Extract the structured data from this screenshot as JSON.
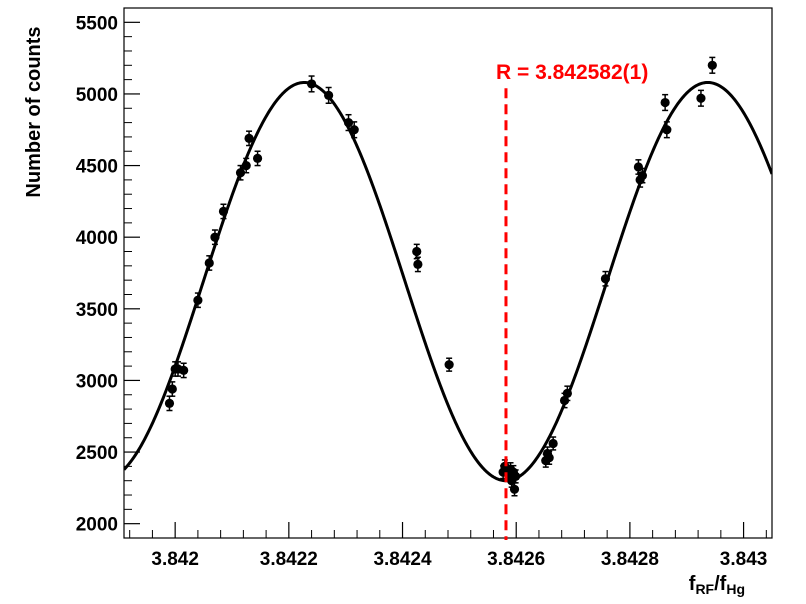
{
  "chart_data": {
    "type": "scatter",
    "title": "",
    "xlabel": {
      "main": "f",
      "sub1": "RF",
      "sep": "/f",
      "sub2": "Hg"
    },
    "ylabel": "Number of counts",
    "xlim": [
      3.84191,
      3.84305
    ],
    "ylim": [
      1900,
      5600
    ],
    "x_ticks": [
      {
        "value": 3.842,
        "label": "3.842"
      },
      {
        "value": 3.8422,
        "label": "3.8422"
      },
      {
        "value": 3.8424,
        "label": "3.8424"
      },
      {
        "value": 3.8426,
        "label": "3.8426"
      },
      {
        "value": 3.8428,
        "label": "3.8428"
      },
      {
        "value": 3.843,
        "label": "3.843"
      }
    ],
    "y_ticks": [
      {
        "value": 2000,
        "label": "2000"
      },
      {
        "value": 2500,
        "label": "2500"
      },
      {
        "value": 3000,
        "label": "3000"
      },
      {
        "value": 3500,
        "label": "3500"
      },
      {
        "value": 4000,
        "label": "4000"
      },
      {
        "value": 4500,
        "label": "4500"
      },
      {
        "value": 5000,
        "label": "5000"
      },
      {
        "value": 5500,
        "label": "5500"
      }
    ],
    "series": [
      {
        "kind": "points_with_errors",
        "color": "#000000",
        "x": [
          3.84199,
          3.841995,
          3.842,
          3.842005,
          3.842015,
          3.84204,
          3.84206,
          3.84207,
          3.842085,
          3.842115,
          3.842125,
          3.84213,
          3.842145,
          3.84224,
          3.84227,
          3.842305,
          3.842315,
          3.842425,
          3.842427,
          3.842482,
          3.842577,
          3.84258,
          3.842585,
          3.84259,
          3.842592,
          3.842595,
          3.842597,
          3.842599,
          3.842652,
          3.842655,
          3.842658,
          3.842665,
          3.842685,
          3.84269,
          3.842757,
          3.842815,
          3.842818,
          3.842822,
          3.842862,
          3.842865,
          3.842925,
          3.842945
        ],
        "y": [
          2840,
          2940,
          3080,
          3080,
          3070,
          3560,
          3820,
          4000,
          4180,
          4450,
          4500,
          4690,
          4550,
          5070,
          4990,
          4800,
          4750,
          3900,
          3810,
          3110,
          2360,
          2400,
          2350,
          2380,
          2300,
          2360,
          2240,
          2330,
          2440,
          2490,
          2460,
          2560,
          2860,
          2910,
          3710,
          4490,
          4400,
          4430,
          4940,
          4750,
          4970,
          5200
        ],
        "err": [
          50,
          50,
          50,
          50,
          50,
          50,
          50,
          50,
          50,
          50,
          50,
          50,
          50,
          55,
          55,
          55,
          55,
          50,
          50,
          45,
          45,
          45,
          45,
          45,
          45,
          45,
          45,
          45,
          45,
          45,
          45,
          45,
          50,
          50,
          50,
          50,
          50,
          50,
          55,
          55,
          55,
          55
        ]
      },
      {
        "kind": "fit_curve",
        "color": "#000000",
        "function": "cosine",
        "center": 3.842582,
        "baseline": 3690,
        "amplitude": 1390,
        "period": 0.00071
      }
    ],
    "annotation": {
      "text": "R = 3.842582(1)",
      "x": 3.842582,
      "y_top": 5040,
      "color": "#ff0000"
    },
    "grid": false,
    "legend": "none"
  }
}
